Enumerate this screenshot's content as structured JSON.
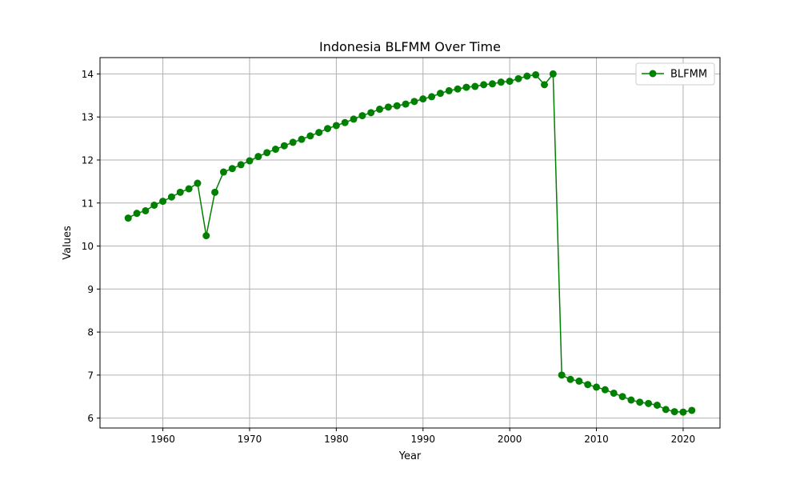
{
  "chart_data": {
    "type": "line",
    "title": "Indonesia BLFMM Over Time",
    "xlabel": "Year",
    "ylabel": "Values",
    "xlim": [
      1952.75,
      2024.25
    ],
    "ylim": [
      5.77,
      14.38
    ],
    "xticks": [
      1960,
      1970,
      1980,
      1990,
      2000,
      2010,
      2020
    ],
    "yticks": [
      6,
      7,
      8,
      9,
      10,
      11,
      12,
      13,
      14
    ],
    "grid": true,
    "legend_position": "top-right",
    "series": [
      {
        "name": "BLFMM",
        "color": "#008000",
        "marker": "circle",
        "x": [
          1956,
          1957,
          1958,
          1959,
          1960,
          1961,
          1962,
          1963,
          1964,
          1965,
          1966,
          1967,
          1968,
          1969,
          1970,
          1971,
          1972,
          1973,
          1974,
          1975,
          1976,
          1977,
          1978,
          1979,
          1980,
          1981,
          1982,
          1983,
          1984,
          1985,
          1986,
          1987,
          1988,
          1989,
          1990,
          1991,
          1992,
          1993,
          1994,
          1995,
          1996,
          1997,
          1998,
          1999,
          2000,
          2001,
          2002,
          2003,
          2004,
          2005,
          2006,
          2007,
          2008,
          2009,
          2010,
          2011,
          2012,
          2013,
          2014,
          2015,
          2016,
          2017,
          2018,
          2019,
          2020,
          2021
        ],
        "y": [
          10.65,
          10.76,
          10.82,
          10.95,
          11.04,
          11.14,
          11.25,
          11.33,
          11.46,
          10.24,
          11.25,
          11.72,
          11.8,
          11.89,
          11.98,
          12.08,
          12.17,
          12.25,
          12.33,
          12.41,
          12.48,
          12.56,
          12.64,
          12.73,
          12.8,
          12.87,
          12.95,
          13.03,
          13.1,
          13.18,
          13.23,
          13.26,
          13.3,
          13.36,
          13.42,
          13.47,
          13.55,
          13.61,
          13.65,
          13.69,
          13.71,
          13.75,
          13.77,
          13.81,
          13.83,
          13.89,
          13.95,
          13.98,
          13.75,
          14.0,
          7.0,
          6.9,
          6.86,
          6.78,
          6.72,
          6.66,
          6.58,
          6.5,
          6.42,
          6.37,
          6.34,
          6.3,
          6.2,
          6.15,
          6.14,
          6.18
        ]
      }
    ]
  }
}
